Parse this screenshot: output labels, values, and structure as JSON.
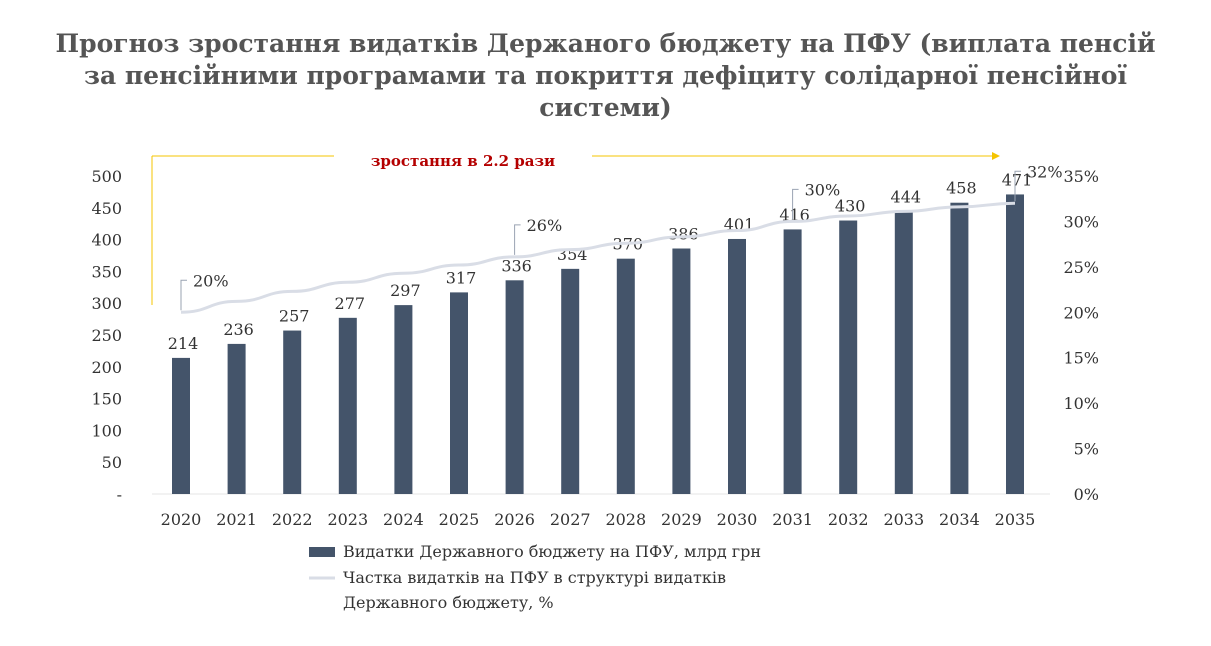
{
  "chart_data": {
    "type": "bar",
    "title": "Прогноз зростання видатків Держаного бюджету на ПФУ (виплата пенсій за пенсійними програмами та покриття дефіциту солідарної пенсійної системи)",
    "categories": [
      "2020",
      "2021",
      "2022",
      "2023",
      "2024",
      "2025",
      "2026",
      "2027",
      "2028",
      "2029",
      "2030",
      "2031",
      "2032",
      "2033",
      "2034",
      "2035"
    ],
    "series": [
      {
        "name": "Видатки Державного бюджету на ПФУ, млрд грн",
        "type": "bar",
        "axis": "left",
        "color": "#44546a",
        "values": [
          214,
          236,
          257,
          277,
          297,
          317,
          336,
          354,
          370,
          386,
          401,
          416,
          430,
          444,
          458,
          471
        ]
      },
      {
        "name": "Частка видатків на ПФУ в структурі видатків Державного бюджету, %",
        "type": "line",
        "axis": "right",
        "color": "#d9dde6",
        "values": [
          20,
          21.2,
          22.3,
          23.3,
          24.3,
          25.2,
          26.1,
          26.9,
          27.6,
          28.3,
          29.0,
          30.0,
          30.6,
          31.1,
          31.6,
          32.0
        ],
        "labels": [
          {
            "index": 0,
            "text": "20%"
          },
          {
            "index": 6,
            "text": "26%"
          },
          {
            "index": 11,
            "text": "30%"
          },
          {
            "index": 15,
            "text": "32%"
          }
        ]
      }
    ],
    "left_axis": {
      "ticks": [
        "-",
        "50",
        "100",
        "150",
        "200",
        "250",
        "300",
        "350",
        "400",
        "450",
        "500"
      ],
      "ylim": [
        0,
        500
      ]
    },
    "right_axis": {
      "ticks": [
        "0%",
        "5%",
        "10%",
        "15%",
        "20%",
        "25%",
        "30%",
        "35%"
      ],
      "ylim": [
        0,
        35
      ]
    },
    "annotation": "зростання в 2.2 рази",
    "legend_position": "bottom"
  },
  "legend": {
    "bar_label": "Видатки Державного бюджету на ПФУ, млрд грн",
    "line_label_1": "Частка видатків на ПФУ в структурі видатків",
    "line_label_2": "Державного бюджету, %"
  },
  "colors": {
    "bar": "#44546a",
    "line": "#d9dde6",
    "arrow": "#f5c400",
    "annotation": "#b40000"
  }
}
